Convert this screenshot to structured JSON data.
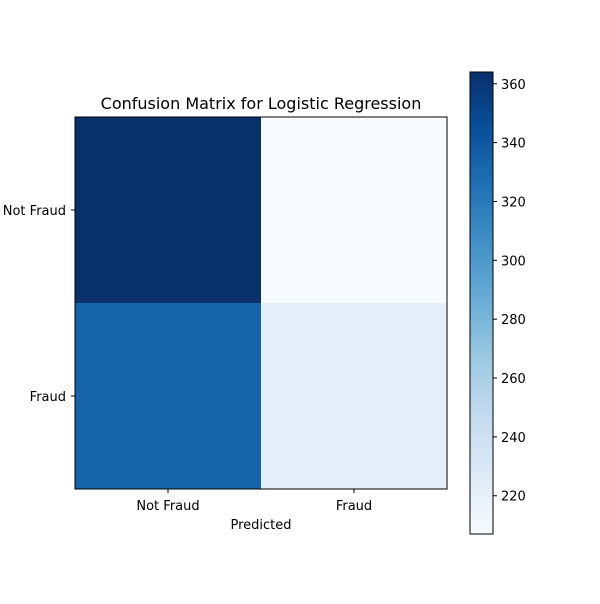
{
  "chart_data": {
    "type": "heatmap",
    "title": "Confusion Matrix for Logistic Regression",
    "xlabel": "Predicted",
    "ylabel": "",
    "x_categories": [
      "Not Fraud",
      "Fraud"
    ],
    "y_categories": [
      "Not Fraud",
      "Fraud"
    ],
    "values": [
      [
        364,
        207
      ],
      [
        333,
        222
      ]
    ],
    "colormap": "Blues",
    "color_range": [
      207,
      364
    ],
    "colorbar_ticks": [
      220,
      240,
      260,
      280,
      300,
      320,
      340,
      360
    ],
    "cell_annotations": false,
    "grid": false
  }
}
